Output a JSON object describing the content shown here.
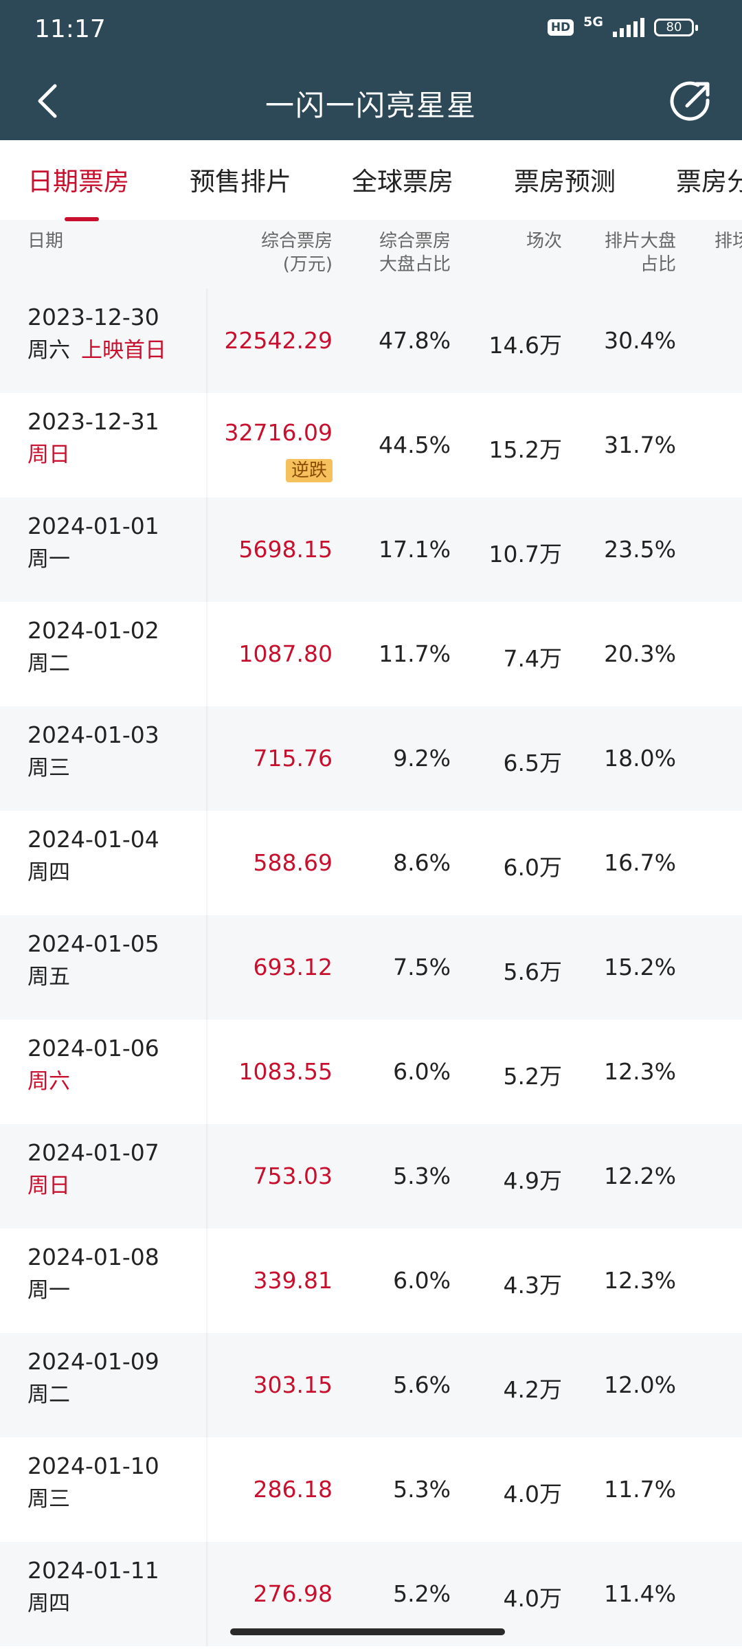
{
  "status_bar": {
    "time": "11:17",
    "hd": "HD",
    "network": "5G",
    "battery": "80"
  },
  "header": {
    "title": "一闪一闪亮星星"
  },
  "tabs": [
    "日期票房",
    "预售排片",
    "全球票房",
    "票房预测",
    "票房分"
  ],
  "columns": {
    "date": "日期",
    "box_office_line1": "综合票房",
    "box_office_line2": "(万元)",
    "share_line1": "综合票房",
    "share_line2": "大盘占比",
    "shows": "场次",
    "schedule_line1": "排片大盘",
    "schedule_line2": "占比",
    "extra": "排场"
  },
  "rows": [
    {
      "date": "2023-12-30",
      "weekday": "周六",
      "note": "上映首日",
      "box_office": "22542.29",
      "share": "47.8%",
      "shows": "14.6万",
      "schedule": "30.4%"
    },
    {
      "date": "2023-12-31",
      "weekday": "周日",
      "tag": "逆跌",
      "box_office": "32716.09",
      "share": "44.5%",
      "shows": "15.2万",
      "schedule": "31.7%"
    },
    {
      "date": "2024-01-01",
      "weekday": "周一",
      "box_office": "5698.15",
      "share": "17.1%",
      "shows": "10.7万",
      "schedule": "23.5%"
    },
    {
      "date": "2024-01-02",
      "weekday": "周二",
      "box_office": "1087.80",
      "share": "11.7%",
      "shows": "7.4万",
      "schedule": "20.3%"
    },
    {
      "date": "2024-01-03",
      "weekday": "周三",
      "box_office": "715.76",
      "share": "9.2%",
      "shows": "6.5万",
      "schedule": "18.0%"
    },
    {
      "date": "2024-01-04",
      "weekday": "周四",
      "box_office": "588.69",
      "share": "8.6%",
      "shows": "6.0万",
      "schedule": "16.7%"
    },
    {
      "date": "2024-01-05",
      "weekday": "周五",
      "box_office": "693.12",
      "share": "7.5%",
      "shows": "5.6万",
      "schedule": "15.2%"
    },
    {
      "date": "2024-01-06",
      "weekday": "周六",
      "box_office": "1083.55",
      "share": "6.0%",
      "shows": "5.2万",
      "schedule": "12.3%"
    },
    {
      "date": "2024-01-07",
      "weekday": "周日",
      "box_office": "753.03",
      "share": "5.3%",
      "shows": "4.9万",
      "schedule": "12.2%"
    },
    {
      "date": "2024-01-08",
      "weekday": "周一",
      "box_office": "339.81",
      "share": "6.0%",
      "shows": "4.3万",
      "schedule": "12.3%"
    },
    {
      "date": "2024-01-09",
      "weekday": "周二",
      "box_office": "303.15",
      "share": "5.6%",
      "shows": "4.2万",
      "schedule": "12.0%"
    },
    {
      "date": "2024-01-10",
      "weekday": "周三",
      "box_office": "286.18",
      "share": "5.3%",
      "shows": "4.0万",
      "schedule": "11.7%"
    },
    {
      "date": "2024-01-11",
      "weekday": "周四",
      "box_office": "276.98",
      "share": "5.2%",
      "shows": "4.0万",
      "schedule": "11.4%"
    }
  ],
  "colors": {
    "header_bg": "#2d4857",
    "accent_red": "#c8102e",
    "tag_bg": "#f6c15c",
    "alt_row_bg": "#f6f7f8"
  },
  "icons": {
    "back": "chevron-left-icon",
    "share": "share-icon",
    "signal": "signal-icon",
    "battery": "battery-icon"
  }
}
